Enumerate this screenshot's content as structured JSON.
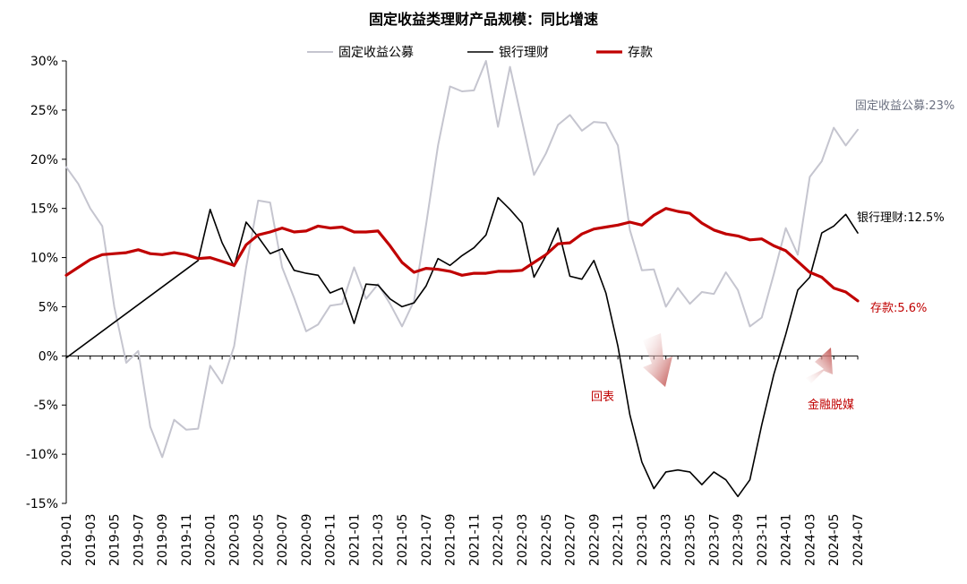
{
  "chart_data": {
    "type": "line",
    "title": "固定收益类理财产品规模：同比增速",
    "xlabel": "",
    "ylabel": "",
    "ylim": [
      -15,
      30
    ],
    "yticks": [
      "30%",
      "25%",
      "20%",
      "15%",
      "10%",
      "5%",
      "0%",
      "-5%",
      "-10%",
      "-15%"
    ],
    "ytick_values": [
      30,
      25,
      20,
      15,
      10,
      5,
      0,
      -5,
      -10,
      -15
    ],
    "grid": false,
    "legend_position": "top",
    "x": [
      "2019-01",
      "2019-02",
      "2019-03",
      "2019-04",
      "2019-05",
      "2019-06",
      "2019-07",
      "2019-08",
      "2019-09",
      "2019-10",
      "2019-11",
      "2019-12",
      "2020-01",
      "2020-02",
      "2020-03",
      "2020-04",
      "2020-05",
      "2020-06",
      "2020-07",
      "2020-08",
      "2020-09",
      "2020-10",
      "2020-11",
      "2020-12",
      "2021-01",
      "2021-02",
      "2021-03",
      "2021-04",
      "2021-05",
      "2021-06",
      "2021-07",
      "2021-08",
      "2021-09",
      "2021-10",
      "2021-11",
      "2021-12",
      "2022-01",
      "2022-02",
      "2022-03",
      "2022-04",
      "2022-05",
      "2022-06",
      "2022-07",
      "2022-08",
      "2022-09",
      "2022-10",
      "2022-11",
      "2022-12",
      "2023-01",
      "2023-02",
      "2023-03",
      "2023-04",
      "2023-05",
      "2023-06",
      "2023-07",
      "2023-08",
      "2023-09",
      "2023-10",
      "2023-11",
      "2023-12",
      "2024-01",
      "2024-02",
      "2024-03",
      "2024-04",
      "2024-05",
      "2024-06",
      "2024-07"
    ],
    "xtick_labels": [
      "2019-01",
      "2019-03",
      "2019-05",
      "2019-07",
      "2019-09",
      "2019-11",
      "2020-01",
      "2020-03",
      "2020-05",
      "2020-07",
      "2020-09",
      "2020-11",
      "2021-01",
      "2021-03",
      "2021-05",
      "2021-07",
      "2021-09",
      "2021-11",
      "2022-01",
      "2022-03",
      "2022-05",
      "2022-07",
      "2022-09",
      "2022-11",
      "2023-01",
      "2023-03",
      "2023-05",
      "2023-07",
      "2023-09",
      "2023-11",
      "2024-01",
      "2024-03",
      "2024-05",
      "2024-07"
    ],
    "series": [
      {
        "name": "固定收益公募",
        "color": "#c5c5cf",
        "width": 2,
        "values": [
          19.2,
          17.5,
          15.0,
          13.2,
          5.0,
          -0.7,
          0.5,
          -7.2,
          -10.3,
          -6.5,
          -7.5,
          -7.4,
          -1.0,
          -2.8,
          1.0,
          9.0,
          15.8,
          15.6,
          9.0,
          5.9,
          2.5,
          3.2,
          5.1,
          5.3,
          9.0,
          5.8,
          7.3,
          5.3,
          3.0,
          5.6,
          13.3,
          21.4,
          27.4,
          26.9,
          27.0,
          30.0,
          23.3,
          29.4,
          23.9,
          18.4,
          20.6,
          23.5,
          24.5,
          22.9,
          23.8,
          23.7,
          21.4,
          12.8,
          8.7,
          8.8,
          5.0,
          6.9,
          5.3,
          6.5,
          6.3,
          8.5,
          6.7,
          3.0,
          3.9,
          8.3,
          13.0,
          10.3,
          18.2,
          19.8,
          23.2,
          21.4,
          23.0
        ]
      },
      {
        "name": "银行理财",
        "color": "#000000",
        "width": 1.6,
        "values": [
          -0.2,
          null,
          null,
          null,
          null,
          null,
          null,
          null,
          null,
          null,
          null,
          9.7,
          14.9,
          11.5,
          9.1,
          13.6,
          12.1,
          10.4,
          10.9,
          8.7,
          8.4,
          8.2,
          6.4,
          6.9,
          3.3,
          7.3,
          7.2,
          5.8,
          5.0,
          5.4,
          7.1,
          9.9,
          9.2,
          10.2,
          11.0,
          12.3,
          16.1,
          14.9,
          13.5,
          8.0,
          10.2,
          13.0,
          8.1,
          7.8,
          9.7,
          6.4,
          1.0,
          -6.0,
          -10.8,
          -13.5,
          -11.8,
          -11.6,
          -11.8,
          -13.1,
          -11.8,
          -12.6,
          -14.3,
          -12.6,
          -7.0,
          -1.9,
          2.2,
          6.7,
          8.0,
          12.5,
          13.2,
          14.4,
          12.5
        ]
      },
      {
        "name": "存款",
        "color": "#c00000",
        "width": 3.2,
        "values": [
          8.2,
          9.0,
          9.8,
          10.3,
          10.4,
          10.5,
          10.8,
          10.4,
          10.3,
          10.5,
          10.3,
          9.9,
          10.0,
          9.6,
          9.2,
          11.3,
          12.3,
          12.6,
          13.0,
          12.6,
          12.7,
          13.2,
          13.0,
          13.1,
          12.6,
          12.6,
          12.7,
          11.2,
          9.5,
          8.5,
          8.9,
          8.8,
          8.6,
          8.2,
          8.4,
          8.4,
          8.6,
          8.6,
          8.7,
          9.5,
          10.3,
          11.4,
          11.5,
          12.4,
          12.9,
          13.1,
          13.3,
          13.6,
          13.3,
          14.3,
          15.0,
          14.7,
          14.5,
          13.5,
          12.8,
          12.4,
          12.2,
          11.8,
          11.9,
          11.2,
          10.7,
          9.6,
          8.5,
          8.0,
          6.9,
          6.5,
          5.6
        ]
      }
    ],
    "end_labels": [
      {
        "series": "固定收益公募",
        "text": "固定收益公募:23%",
        "color": "#6b7080"
      },
      {
        "series": "银行理财",
        "text": "银行理财:12.5%",
        "color": "#000000"
      },
      {
        "series": "存款",
        "text": "存款:5.6%",
        "color": "#c00000"
      }
    ],
    "annotations": [
      {
        "text": "回表",
        "color": "#c00000",
        "arrow": "down"
      },
      {
        "text": "金融脱媒",
        "color": "#c00000",
        "arrow": "up"
      }
    ]
  }
}
